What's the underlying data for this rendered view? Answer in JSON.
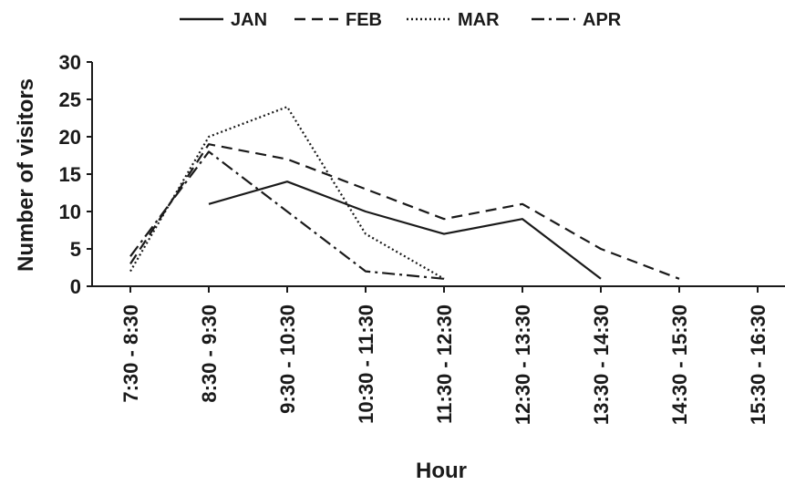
{
  "chart_data": {
    "type": "line",
    "xlabel": "Hour",
    "ylabel": "Number of visitors",
    "categories": [
      "7:30 - 8:30",
      "8:30 - 9:30",
      "9:30 - 10:30",
      "10:30 - 11:30",
      "11:30 - 12:30",
      "12:30 - 13:30",
      "13:30 - 14:30",
      "14:30 - 15:30",
      "15:30 - 16:30"
    ],
    "ylim": [
      0,
      30
    ],
    "yticks": [
      0,
      5,
      10,
      15,
      20,
      25,
      30
    ],
    "legend_position": "top",
    "grid": false,
    "series": [
      {
        "name": "JAN",
        "style": "solid",
        "values": [
          null,
          11,
          14,
          10,
          7,
          9,
          1,
          null,
          null
        ]
      },
      {
        "name": "FEB",
        "style": "dashed",
        "values": [
          3,
          19,
          17,
          13,
          9,
          11,
          5,
          1,
          null
        ]
      },
      {
        "name": "MAR",
        "style": "dotted",
        "values": [
          2,
          20,
          24,
          7,
          1,
          null,
          null,
          null,
          null
        ]
      },
      {
        "name": "APR",
        "style": "dash-dot",
        "values": [
          4,
          18,
          10,
          2,
          1,
          null,
          null,
          null,
          null
        ]
      }
    ]
  }
}
